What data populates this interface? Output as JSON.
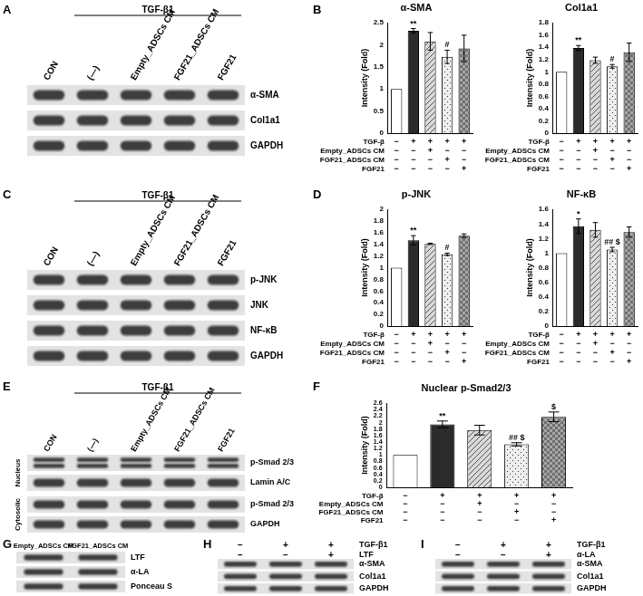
{
  "panel_labels": [
    "A",
    "B",
    "C",
    "D",
    "E",
    "F",
    "G",
    "H",
    "I"
  ],
  "chart_data": [
    {
      "type": "bar",
      "title": "α-SMA",
      "y_label": "Intensity (Fold)",
      "values": [
        1,
        2.32,
        2.08,
        1.73,
        1.92
      ],
      "errors": [
        0,
        0.05,
        0.2,
        0.15,
        0.3
      ],
      "annotations": [
        null,
        "**",
        null,
        "#",
        null
      ],
      "colors": [
        "#ffffff",
        "#2b2b2b",
        "#d9d9d9",
        "#eeeeee",
        "#a6a6a6"
      ],
      "ylim": [
        0,
        2.5
      ],
      "yticks": [
        0,
        0.5,
        1,
        1.5,
        2,
        2.5
      ],
      "grid": false,
      "tick_labels": "y",
      "conditions": {
        "rows": [
          "TGF-β",
          "Empty_ADSCs CM",
          "FGF21_ADSCs CM",
          "FGF21"
        ],
        "signs": [
          [
            "−",
            "+",
            "+",
            "+",
            "+"
          ],
          [
            "−",
            "−",
            "+",
            "−",
            "−"
          ],
          [
            "−",
            "−",
            "−",
            "+",
            "−"
          ],
          [
            "−",
            "−",
            "−",
            "−",
            "+"
          ]
        ]
      }
    },
    {
      "type": "bar",
      "title": "Col1a1",
      "y_label": "Intensity (Fold)",
      "values": [
        1,
        1.39,
        1.19,
        1.09,
        1.32
      ],
      "errors": [
        0,
        0.04,
        0.05,
        0.03,
        0.15
      ],
      "annotations": [
        null,
        "**",
        null,
        "#",
        null
      ],
      "colors": [
        "#ffffff",
        "#2b2b2b",
        "#d9d9d9",
        "#eeeeee",
        "#a6a6a6"
      ],
      "ylim": [
        0,
        1.8
      ],
      "yticks": [
        0,
        0.2,
        0.4,
        0.6,
        0.8,
        1,
        1.2,
        1.4,
        1.6,
        1.8
      ],
      "grid": false,
      "tick_labels": "y",
      "conditions": {
        "rows": [
          "TGF-β",
          "Empty_ADSCs CM",
          "FGF21_ADSCs CM",
          "FGF21"
        ],
        "signs": [
          [
            "−",
            "+",
            "+",
            "+",
            "+"
          ],
          [
            "−",
            "−",
            "+",
            "−",
            "−"
          ],
          [
            "−",
            "−",
            "−",
            "+",
            "−"
          ],
          [
            "−",
            "−",
            "−",
            "−",
            "+"
          ]
        ]
      }
    },
    {
      "type": "bar",
      "title": "p-JNK",
      "y_label": "Intensity (Fold)",
      "values": [
        1,
        1.47,
        1.41,
        1.23,
        1.55
      ],
      "errors": [
        0,
        0.08,
        0.01,
        0.02,
        0.03
      ],
      "annotations": [
        null,
        "**",
        null,
        "#",
        null
      ],
      "colors": [
        "#ffffff",
        "#2b2b2b",
        "#d9d9d9",
        "#eeeeee",
        "#a6a6a6"
      ],
      "ylim": [
        0,
        2
      ],
      "yticks": [
        0,
        0.2,
        0.4,
        0.6,
        0.8,
        1,
        1.2,
        1.4,
        1.6,
        1.8,
        2
      ],
      "grid": false,
      "tick_labels": "y",
      "conditions": {
        "rows": [
          "TGF-β",
          "Empty_ADSCs CM",
          "FGF21_ADSCs CM",
          "FGF21"
        ],
        "signs": [
          [
            "−",
            "+",
            "+",
            "+",
            "+"
          ],
          [
            "−",
            "−",
            "+",
            "−",
            "−"
          ],
          [
            "−",
            "−",
            "−",
            "+",
            "−"
          ],
          [
            "−",
            "−",
            "−",
            "−",
            "+"
          ]
        ]
      }
    },
    {
      "type": "bar",
      "title": "NF-κB",
      "y_label": "Intensity (Fold)",
      "values": [
        1,
        1.37,
        1.32,
        1.05,
        1.29
      ],
      "errors": [
        0,
        0.1,
        0.1,
        0.03,
        0.07
      ],
      "annotations": [
        null,
        "*",
        null,
        "## $",
        null
      ],
      "colors": [
        "#ffffff",
        "#2b2b2b",
        "#d9d9d9",
        "#eeeeee",
        "#a6a6a6"
      ],
      "ylim": [
        0,
        1.6
      ],
      "yticks": [
        0,
        0.2,
        0.4,
        0.6,
        0.8,
        1,
        1.2,
        1.4,
        1.6
      ],
      "grid": false,
      "tick_labels": "y",
      "conditions": {
        "rows": [
          "TGF-β",
          "Empty_ADSCs CM",
          "FGF21_ADSCs CM",
          "FGF21"
        ],
        "signs": [
          [
            "−",
            "+",
            "+",
            "+",
            "+"
          ],
          [
            "−",
            "−",
            "+",
            "−",
            "−"
          ],
          [
            "−",
            "−",
            "−",
            "+",
            "−"
          ],
          [
            "−",
            "−",
            "−",
            "−",
            "+"
          ]
        ]
      }
    },
    {
      "type": "bar",
      "title": "Nuclear p-Smad2/3",
      "y_label": "Intensity (Fold)",
      "values": [
        1,
        1.95,
        1.77,
        1.33,
        2.18
      ],
      "errors": [
        0,
        0.1,
        0.15,
        0.05,
        0.15
      ],
      "annotations": [
        null,
        "**",
        null,
        "## $",
        "$"
      ],
      "colors": [
        "#ffffff",
        "#2b2b2b",
        "#d9d9d9",
        "#eeeeee",
        "#a6a6a6"
      ],
      "ylim": [
        0,
        2.6
      ],
      "yticks": [
        0,
        0.2,
        0.4,
        0.6,
        0.8,
        1,
        1.2,
        1.4,
        1.6,
        1.8,
        2,
        2.2,
        2.4,
        2.6
      ],
      "grid": false,
      "tick_labels": "y",
      "conditions": {
        "rows": [
          "TGF-β",
          "Empty_ADSCs CM",
          "FGF21_ADSCs CM",
          "FGF21"
        ],
        "signs": [
          [
            "−",
            "+",
            "+",
            "+",
            "+"
          ],
          [
            "−",
            "−",
            "+",
            "−",
            "−"
          ],
          [
            "−",
            "−",
            "−",
            "+",
            "−"
          ],
          [
            "−",
            "−",
            "−",
            "−",
            "+"
          ]
        ]
      }
    }
  ],
  "blots": [
    {
      "header": "TGF-β1",
      "columns": [
        "CON",
        "(—)",
        "Empty_ADSCs CM",
        "FGF21_ADSCs CM",
        "FGF21"
      ],
      "rows": [
        "α-SMA",
        "Col1a1",
        "GAPDH"
      ]
    },
    {
      "header": "TGF-β1",
      "columns": [
        "CON",
        "(—)",
        "Empty_ADSCs CM",
        "FGF21_ADSCs CM",
        "FGF21"
      ],
      "rows": [
        "p-JNK",
        "JNK",
        "NF-κB",
        "GAPDH"
      ]
    },
    {
      "header": "TGF-β1",
      "columns": [
        "CON",
        "(—)",
        "Empty_ADSCs CM",
        "FGF21_ADSCs CM",
        "FGF21"
      ],
      "sections": [
        {
          "name": "Nucleus",
          "rows": [
            "p-Smad 2/3",
            "Lamin A/C"
          ]
        },
        {
          "name": "Cytosolic",
          "rows": [
            "p-Smad 2/3",
            "GAPDH"
          ]
        }
      ]
    },
    {
      "columns": [
        "Empty_ADSCs CM",
        "FGF21_ADSCs CM"
      ],
      "rows": [
        "LTF",
        "α-LA",
        "Ponceau S"
      ]
    },
    {
      "treatments": [
        {
          "name": "TGF-β1",
          "signs": [
            "−",
            "+",
            "+"
          ]
        },
        {
          "name": "LTF",
          "signs": [
            "−",
            "−",
            "+"
          ]
        }
      ],
      "rows": [
        "α-SMA",
        "Col1a1",
        "GAPDH"
      ]
    },
    {
      "treatments": [
        {
          "name": "TGF-β1",
          "signs": [
            "−",
            "+",
            "+"
          ]
        },
        {
          "name": "α-LA",
          "signs": [
            "−",
            "−",
            "+"
          ]
        }
      ],
      "rows": [
        "α-SMA",
        "Col1a1",
        "GAPDH"
      ]
    }
  ]
}
